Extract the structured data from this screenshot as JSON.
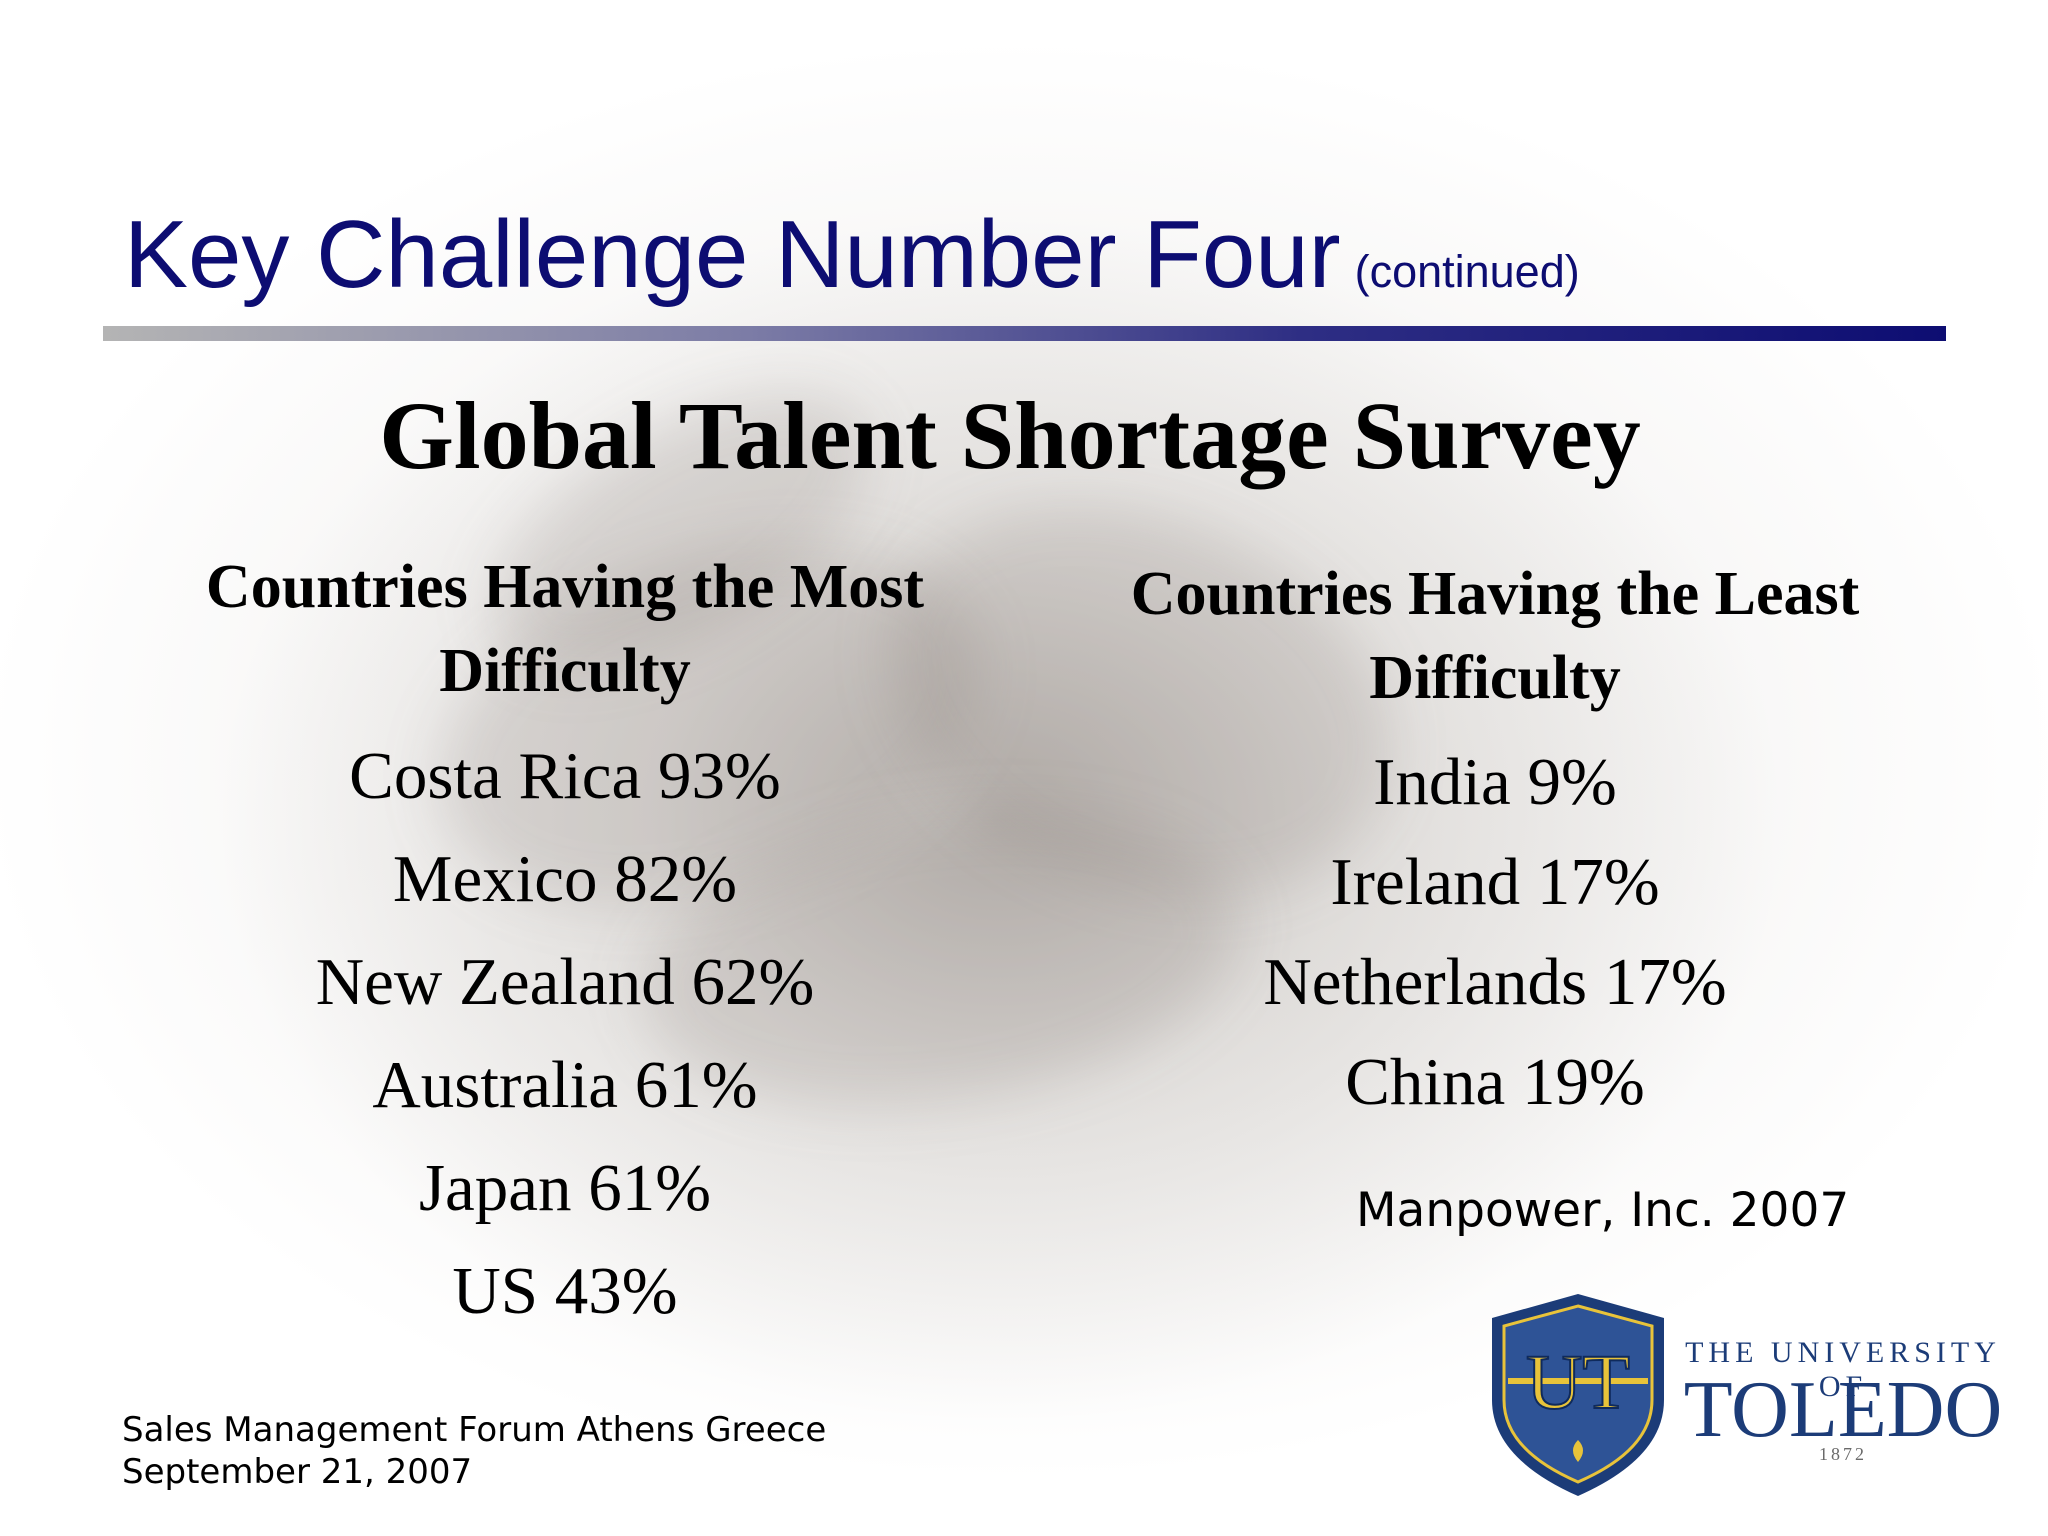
{
  "slide": {
    "title": "Key Challenge Number Four",
    "title_suffix": "(continued)",
    "survey_title": "Global Talent Shortage Survey"
  },
  "most_difficulty": {
    "heading_line1": "Countries Having the Most",
    "heading_line2": "Difficulty",
    "items": [
      "Costa Rica 93%",
      "Mexico 82%",
      "New Zealand 62%",
      "Australia 61%",
      "Japan 61%",
      "US 43%"
    ]
  },
  "least_difficulty": {
    "heading_line1": "Countries Having the Least",
    "heading_line2": "Difficulty",
    "items": [
      "India 9%",
      "Ireland 17%",
      "Netherlands 17%",
      "China 19%"
    ]
  },
  "source": "Manpower, Inc. 2007",
  "footer": {
    "line1": "Sales Management Forum Athens Greece",
    "line2": "September 21, 2007"
  },
  "logo": {
    "monogram": "UT",
    "line1": "THE UNIVERSITY OF",
    "line2": "TOLEDO",
    "year": "1872"
  },
  "colors": {
    "title": "#0d0d72",
    "logo_blue": "#1c3c78",
    "logo_gold": "#e8c33a"
  }
}
